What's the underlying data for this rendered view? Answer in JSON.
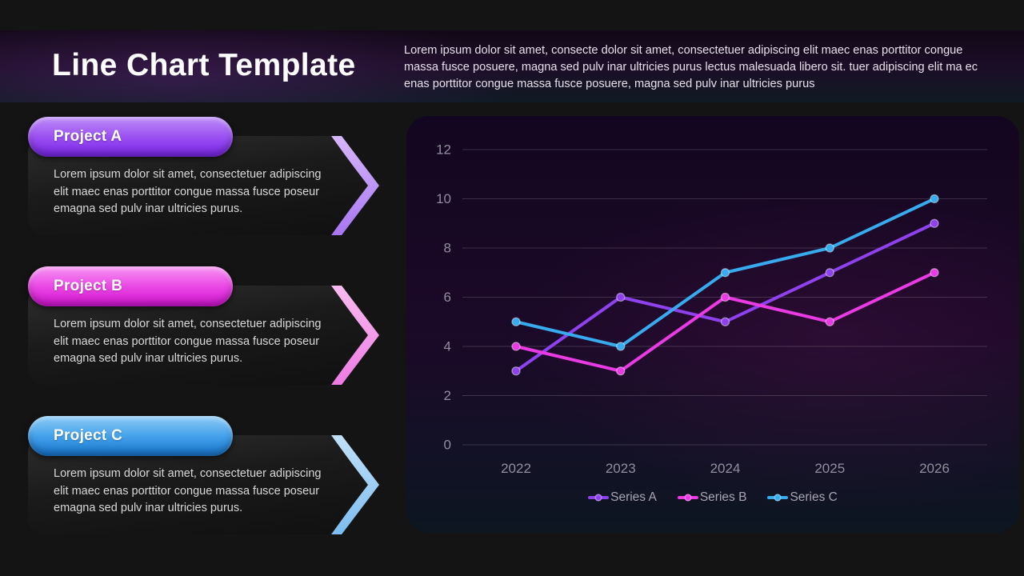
{
  "slide": {
    "title": "Line Chart Template",
    "intro": "Lorem ipsum dolor sit amet, consecte dolor sit amet, consectetuer adipiscing elit maec enas porttitor congue massa fusce posuere, magna sed pulv inar ultricies purus lectus malesuada libero sit. tuer adipiscing elit ma ec enas porttitor congue massa fusce posuere, magna sed pulv inar ultricies purus"
  },
  "projects": [
    {
      "label": "Project A",
      "description": "Lorem ipsum dolor sit amet, consectetuer adipiscing elit maec enas porttitor congue massa fusce poseur emagna sed pulv inar ultricies purus.",
      "pill_gradient": [
        "#bd8df8",
        "#9a4ff2",
        "#7724e4"
      ],
      "chevron_gradient": [
        "#d6b6fa",
        "#a876f2"
      ]
    },
    {
      "label": "Project B",
      "description": "Lorem ipsum dolor sit amet, consectetuer adipiscing elit maec enas porttitor congue massa fusce poseur emagna sed pulv inar ultricies purus.",
      "pill_gradient": [
        "#f795f3",
        "#ea46e4",
        "#cf12cf"
      ],
      "chevron_gradient": [
        "#f8bcf0",
        "#ee7ae2"
      ]
    },
    {
      "label": "Project C",
      "description": "Lorem ipsum dolor sit amet, consectetuer adipiscing elit maec enas porttitor congue massa fusce poseur emagna sed pulv inar ultricies purus.",
      "pill_gradient": [
        "#8ecdf8",
        "#42a0ea",
        "#1674cc"
      ],
      "chevron_gradient": [
        "#c2e1f8",
        "#7cbcf0"
      ]
    }
  ],
  "chart_data": {
    "type": "line",
    "categories": [
      "2022",
      "2023",
      "2024",
      "2025",
      "2026"
    ],
    "series": [
      {
        "name": "Series A",
        "color": "#8e42ee",
        "values": [
          3,
          6,
          5,
          7,
          9
        ]
      },
      {
        "name": "Series B",
        "color": "#e93ae4",
        "values": [
          4,
          3,
          6,
          5,
          7
        ]
      },
      {
        "name": "Series C",
        "color": "#38abee",
        "values": [
          5,
          4,
          7,
          8,
          10
        ]
      }
    ],
    "title": "",
    "xlabel": "",
    "ylabel": "",
    "ylim": [
      0,
      12
    ],
    "yticks": [
      0,
      2,
      4,
      6,
      8,
      10,
      12
    ],
    "grid": "horizontal",
    "legend_position": "bottom",
    "colors": {
      "grid_line": "rgba(255,255,255,0.16)",
      "tick_label": "#928e9d",
      "legend_label": "#a9a4b3"
    }
  }
}
